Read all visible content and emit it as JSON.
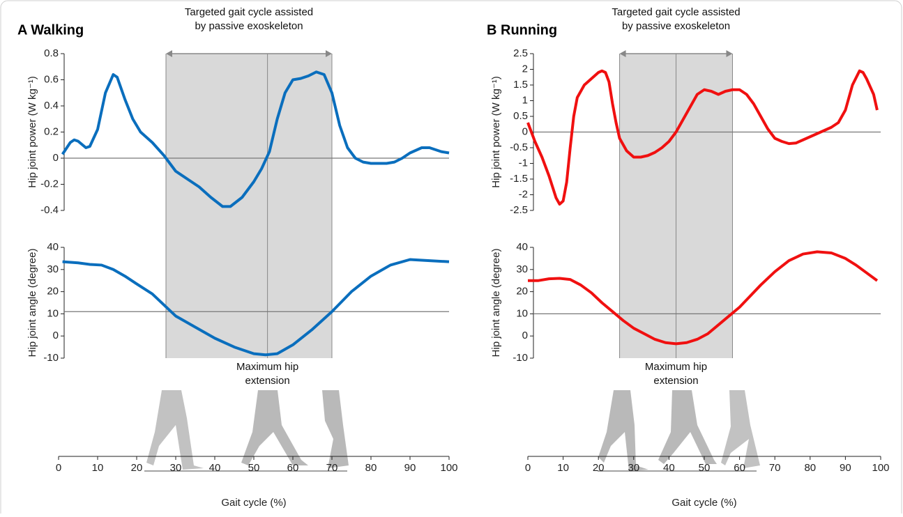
{
  "chart_data": [
    {
      "type": "line",
      "title": "A Walking",
      "ylabel": "Hip joint power (W kg⁻¹)",
      "x": [
        1,
        3,
        4,
        5,
        7,
        8,
        10,
        12,
        14,
        15,
        17,
        19,
        21,
        24,
        27,
        30,
        33,
        36,
        39,
        42,
        44,
        47,
        50,
        52,
        54,
        56,
        58,
        60,
        62,
        64,
        66,
        68,
        70,
        72,
        74,
        76,
        78,
        80,
        84,
        86,
        88,
        90,
        93,
        95,
        98,
        100
      ],
      "series": [
        {
          "color": "#0a6ebd",
          "values": [
            0.03,
            0.12,
            0.14,
            0.13,
            0.08,
            0.09,
            0.22,
            0.5,
            0.64,
            0.62,
            0.45,
            0.3,
            0.2,
            0.12,
            0.02,
            -0.1,
            -0.16,
            -0.22,
            -0.3,
            -0.37,
            -0.37,
            -0.3,
            -0.18,
            -0.08,
            0.05,
            0.3,
            0.5,
            0.6,
            0.61,
            0.63,
            0.66,
            0.64,
            0.5,
            0.25,
            0.08,
            0,
            -0.03,
            -0.04,
            -0.04,
            -0.03,
            0,
            0.04,
            0.08,
            0.08,
            0.05,
            0.04
          ]
        }
      ],
      "xlim": [
        0,
        100
      ],
      "ylim": [
        -0.4,
        0.8
      ],
      "yticks": [
        0.8,
        0.6,
        0.4,
        0.2,
        0,
        -0.2,
        -0.4
      ],
      "hline": 0,
      "annotation": {
        "lines": [
          "Targeted gait cycle assisted",
          "by passive exoskeleton"
        ],
        "x": [
          27.5,
          70
        ]
      }
    },
    {
      "type": "line",
      "ylabel": "Hip joint angle (degree)",
      "xlabel": "Gait cycle (%)",
      "x": [
        1,
        5,
        8,
        11,
        14,
        17,
        20,
        24,
        27,
        30,
        35,
        40,
        45,
        50,
        53,
        56,
        60,
        65,
        70,
        75,
        80,
        85,
        90,
        95,
        100
      ],
      "series": [
        {
          "color": "#0a6ebd",
          "values": [
            33.5,
            33,
            32.3,
            32,
            30,
            27,
            23.5,
            19,
            14,
            9,
            4,
            -1,
            -5,
            -8,
            -8.5,
            -8,
            -4,
            3,
            11,
            20,
            27,
            32,
            34.5,
            34,
            33.5
          ]
        }
      ],
      "xlim": [
        0,
        100
      ],
      "xticks": [
        0,
        10,
        20,
        30,
        40,
        50,
        60,
        70,
        80,
        90,
        100
      ],
      "ylim": [
        -10,
        40
      ],
      "yticks": [
        40,
        30,
        20,
        10,
        0,
        -10
      ],
      "hline": 11,
      "annotation": {
        "lines": [
          "Maximum hip",
          "extension"
        ],
        "x": 53.5
      }
    },
    {
      "type": "line",
      "title": "B Running",
      "ylabel": "Hip joint power (W kg⁻¹)",
      "x": [
        0,
        2,
        4,
        6,
        8,
        9,
        10,
        11,
        12,
        13,
        14,
        16,
        18,
        20,
        21,
        22,
        23,
        24,
        25,
        26,
        28,
        30,
        32,
        34,
        36,
        38,
        40,
        42,
        44,
        46,
        48,
        50,
        52,
        54,
        56,
        58,
        60,
        62,
        64,
        66,
        68,
        70,
        72,
        74,
        76,
        78,
        80,
        82,
        84,
        86,
        88,
        90,
        92,
        94,
        95,
        96,
        98,
        99
      ],
      "series": [
        {
          "color": "#f01010",
          "values": [
            0.3,
            -0.3,
            -0.8,
            -1.4,
            -2.1,
            -2.3,
            -2.2,
            -1.6,
            -0.5,
            0.5,
            1.1,
            1.5,
            1.7,
            1.9,
            1.95,
            1.9,
            1.6,
            0.9,
            0.3,
            -0.2,
            -0.6,
            -0.8,
            -0.8,
            -0.75,
            -0.65,
            -0.5,
            -0.3,
            0,
            0.4,
            0.8,
            1.2,
            1.35,
            1.3,
            1.2,
            1.3,
            1.35,
            1.35,
            1.2,
            0.9,
            0.5,
            0.1,
            -0.2,
            -0.3,
            -0.37,
            -0.35,
            -0.25,
            -0.15,
            -0.05,
            0.05,
            0.15,
            0.3,
            0.7,
            1.5,
            1.95,
            1.9,
            1.7,
            1.2,
            0.7
          ]
        }
      ],
      "xlim": [
        0,
        100
      ],
      "ylim": [
        -2.5,
        2.5
      ],
      "yticks": [
        2.5,
        2,
        1.5,
        1,
        0.5,
        0,
        -0.5,
        -1,
        -1.5,
        -2,
        -2.5
      ],
      "hline": 0,
      "annotation": {
        "lines": [
          "Targeted gait cycle assisted",
          "by passive exoskeleton"
        ],
        "x": [
          26,
          58
        ]
      }
    },
    {
      "type": "line",
      "ylabel": "Hip joint angle (degree)",
      "xlabel": "Gait cycle (%)",
      "x": [
        0,
        3,
        6,
        9,
        12,
        15,
        18,
        21,
        24,
        27,
        30,
        33,
        36,
        39,
        42,
        45,
        48,
        51,
        54,
        57,
        60,
        63,
        66,
        70,
        74,
        78,
        82,
        86,
        90,
        93,
        96,
        99
      ],
      "series": [
        {
          "color": "#f01010",
          "values": [
            25,
            25,
            25.8,
            26,
            25.5,
            23,
            19.5,
            15,
            11,
            7,
            3.5,
            1,
            -1.5,
            -3,
            -3.5,
            -3,
            -1.5,
            1,
            5,
            9,
            13,
            18,
            23,
            29,
            34,
            37,
            38,
            37.5,
            35,
            32,
            28.5,
            25
          ]
        }
      ],
      "xlim": [
        0,
        100
      ],
      "xticks": [
        0,
        10,
        20,
        30,
        40,
        50,
        60,
        70,
        80,
        90,
        100
      ],
      "ylim": [
        -10,
        40
      ],
      "yticks": [
        40,
        30,
        20,
        10,
        0,
        -10
      ],
      "hline": 10,
      "annotation": {
        "lines": [
          "Maximum hip",
          "extension"
        ],
        "x": 42
      }
    }
  ]
}
